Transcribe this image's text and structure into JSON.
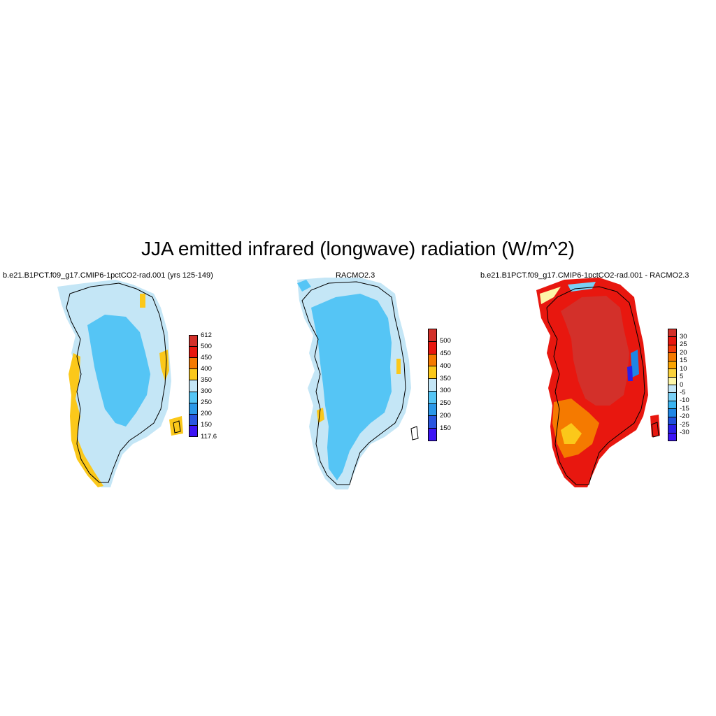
{
  "figure": {
    "title": "JJA emitted infrared (longwave) radiation (W/m^2)"
  },
  "panels": [
    {
      "title": "b.e21.B1PCT.f09_g17.CMIP6-1pctCO2-rad.001 (yrs 125-149)",
      "colorbar": {
        "labels": [
          "612",
          "500",
          "450",
          "400",
          "350",
          "300",
          "250",
          "200",
          "150",
          "117.6"
        ],
        "colors": [
          "#d3302a",
          "#e8170f",
          "#f57a00",
          "#fbc81a",
          "#c4e6f6",
          "#55c5f5",
          "#2c98e8",
          "#2a56e0",
          "#3c14f5"
        ],
        "dominant_fill": {
          "interior": "#55c5f5",
          "margin": "#c4e6f6",
          "coast": "#fbc81a"
        }
      }
    },
    {
      "title": "RACMO2.3",
      "colorbar": {
        "labels": [
          "500",
          "450",
          "400",
          "350",
          "300",
          "250",
          "200",
          "150"
        ],
        "colors": [
          "#d3302a",
          "#e8170f",
          "#f57a00",
          "#fbc81a",
          "#c4e6f6",
          "#55c5f5",
          "#2c98e8",
          "#2a56e0",
          "#3c14f5"
        ],
        "dominant_fill": {
          "interior": "#55c5f5",
          "margin": "#c4e6f6",
          "coast": "#fbc81a"
        }
      }
    },
    {
      "title": "b.e21.B1PCT.f09_g17.CMIP6-1pctCO2-rad.001 - RACMO2.3",
      "colorbar": {
        "labels": [
          "30",
          "25",
          "20",
          "15",
          "10",
          "5",
          "0",
          "-5",
          "-10",
          "-15",
          "-20",
          "-25",
          "-30"
        ],
        "colors": [
          "#d3302a",
          "#e8170f",
          "#f23a0a",
          "#f57a00",
          "#fba400",
          "#fbd23c",
          "#fdf6a8",
          "#c4e6f6",
          "#7ad0f6",
          "#3bb4f0",
          "#1e86e6",
          "#1f4fdd",
          "#2a1ee8",
          "#3c14f5"
        ],
        "dominant_fill": {
          "interior": "#d3302a",
          "margin": "#e8170f",
          "coast": "#f57a00"
        }
      }
    }
  ]
}
